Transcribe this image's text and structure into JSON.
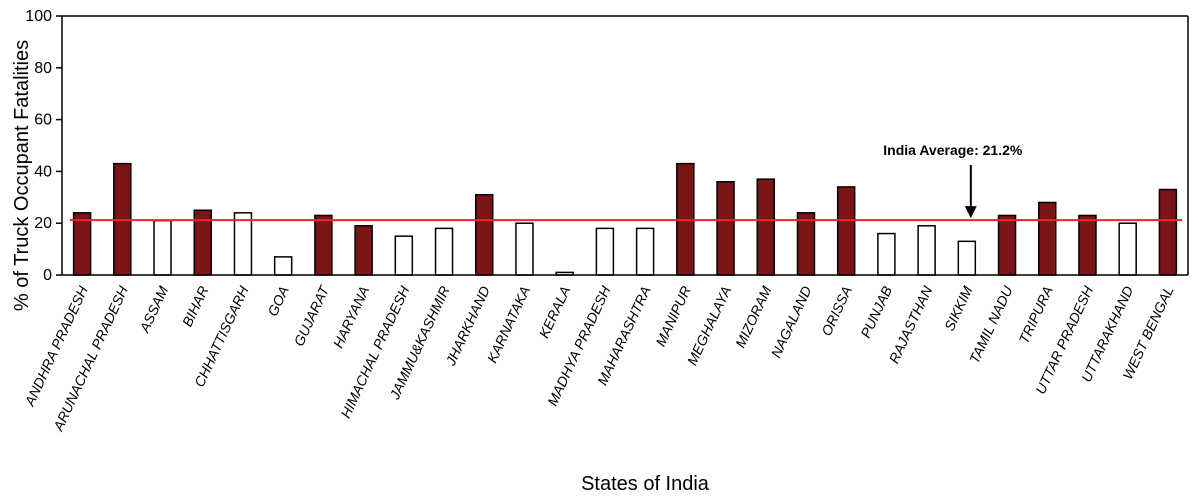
{
  "chart_data": {
    "type": "bar",
    "xlabel": "States of India",
    "ylabel": "% of Truck Occupant Fatalities",
    "ylim": [
      0,
      100
    ],
    "yticks": [
      0,
      20,
      40,
      60,
      80,
      100
    ],
    "grid": false,
    "legend": "none",
    "colors": {
      "filled": "#7b1416",
      "hollow": "#ffffff",
      "outline": "#000000",
      "average_line": "#e8262b"
    },
    "categories": [
      "ANDHRA PRADESH",
      "ARUNACHAL PRADESH",
      "ASSAM",
      "BIHAR",
      "CHHATTISGARH",
      "GOA",
      "GUJARAT",
      "HARYANA",
      "HIMACHAL PRADESH",
      "JAMMU&KASHMIR",
      "JHARKHAND",
      "KARNATAKA",
      "KERALA",
      "MADHYA PRADESH",
      "MAHARASHTRA",
      "MANIPUR",
      "MEGHALAYA",
      "MIZORAM",
      "NAGALAND",
      "ORISSA",
      "PUNJAB",
      "RAJASTHAN",
      "SIKKIM",
      "TAMIL NADU",
      "TRIPURA",
      "UTTAR PRADESH",
      "UTTARAKHAND",
      "WEST BENGAL"
    ],
    "values": [
      24,
      43,
      21,
      25,
      24,
      7,
      23,
      19,
      15,
      18,
      31,
      20,
      1,
      18,
      18,
      43,
      36,
      37,
      24,
      34,
      16,
      19,
      13,
      23,
      28,
      23,
      20,
      33
    ],
    "filled": [
      true,
      true,
      false,
      true,
      false,
      false,
      true,
      true,
      false,
      false,
      true,
      false,
      false,
      false,
      false,
      true,
      true,
      true,
      true,
      true,
      false,
      false,
      false,
      true,
      true,
      true,
      false,
      true
    ],
    "average": 21.2,
    "annotation": {
      "text": "India Average: 21.2%",
      "target_category": "SIKKIM"
    }
  }
}
